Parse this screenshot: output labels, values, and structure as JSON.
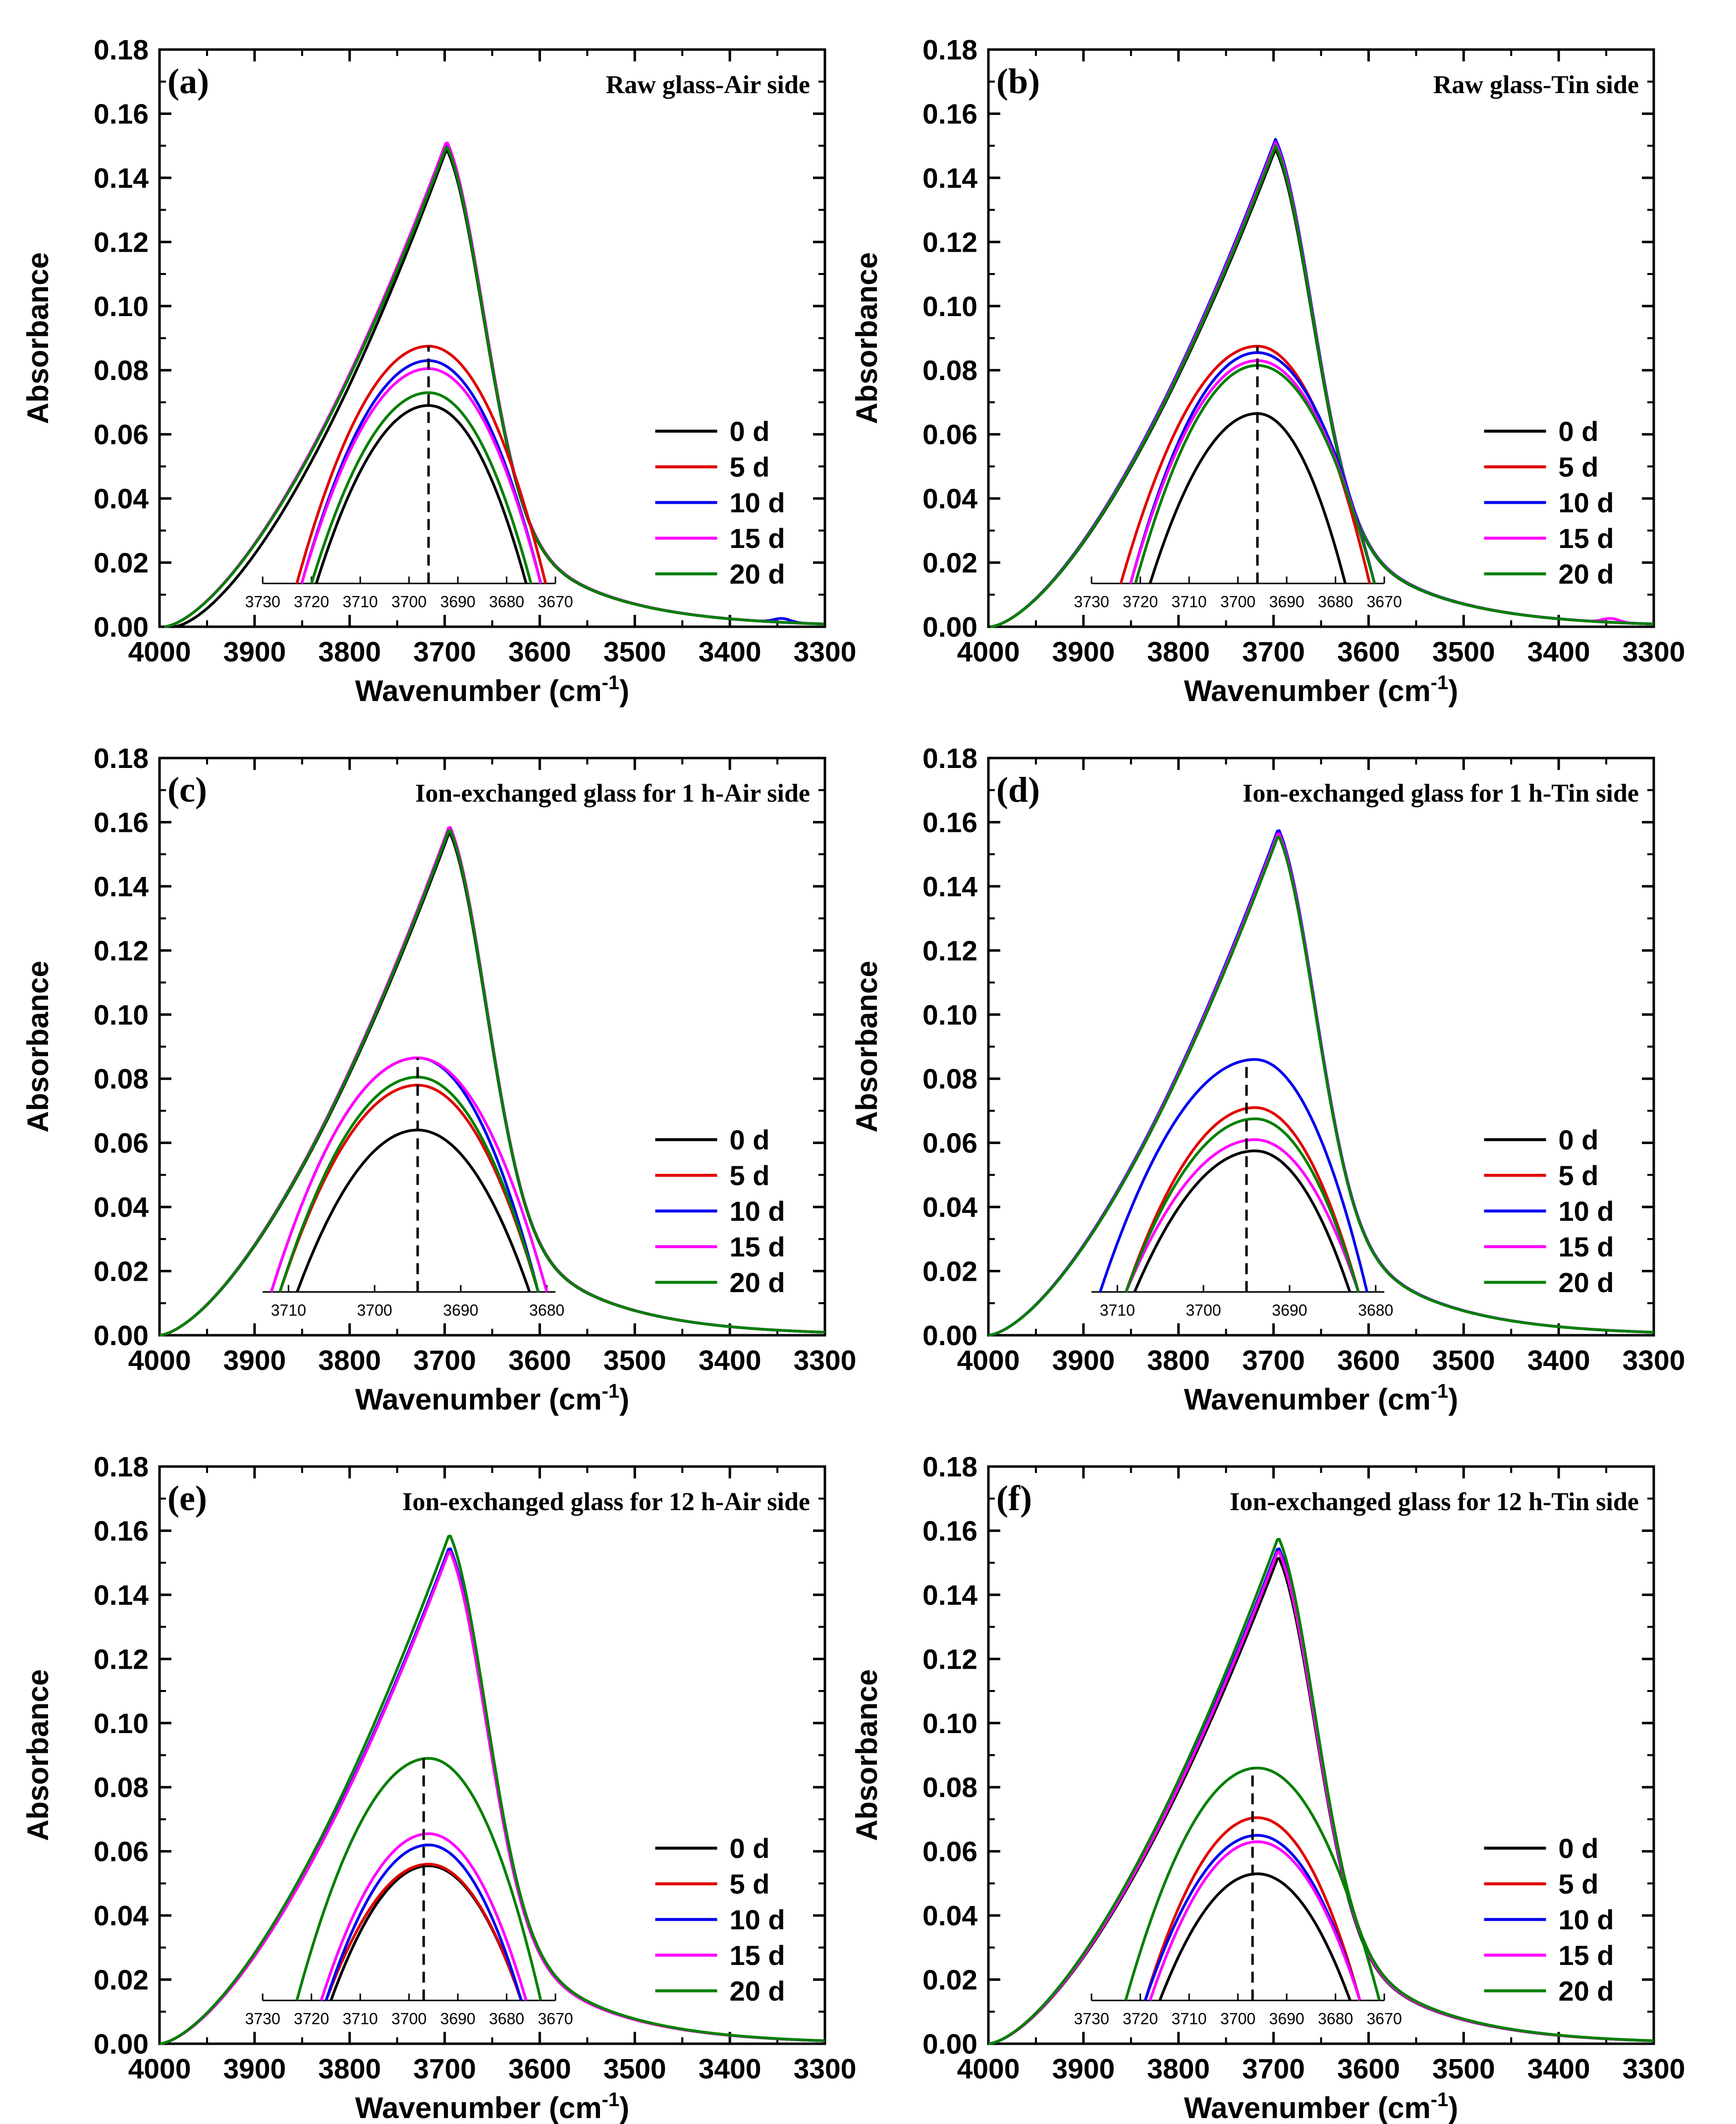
{
  "colors": {
    "0 d": "#000000",
    "5 d": "#e00000",
    "10 d": "#0000ee",
    "15 d": "#ff00ff",
    "20 d": "#008000",
    "axis": "#000000",
    "background": "#ffffff"
  },
  "chart_data": [
    {
      "type": "line",
      "panel": "(a)",
      "title": "Raw glass-Air side",
      "xlabel": "Wavenumber (cm",
      "xlabel_sup": "-1",
      "xlabel_close": ")",
      "ylabel": "Absorbance",
      "xlim": [
        4000,
        3300
      ],
      "ylim": [
        0,
        0.18
      ],
      "x_ticks": [
        "4000",
        "3900",
        "3800",
        "3700",
        "3600",
        "3500",
        "3400",
        "3300"
      ],
      "y_ticks": [
        "0.00",
        "0.02",
        "0.04",
        "0.06",
        "0.08",
        "0.10",
        "0.12",
        "0.14",
        "0.16",
        "0.18"
      ],
      "legend": [
        "0 d",
        "5 d",
        "10 d",
        "15 d",
        "20 d"
      ],
      "legend_position": "right",
      "grid": false,
      "series": [
        {
          "name": "0 d",
          "peak_x": 3698,
          "peak_y": 0.149,
          "start_x": 3985,
          "tail": "none"
        },
        {
          "name": "5 d",
          "peak_x": 3698,
          "peak_y": 0.151,
          "start_x": 3995,
          "tail": "none"
        },
        {
          "name": "10 d",
          "peak_x": 3698,
          "peak_y": 0.151,
          "start_x": 3995,
          "tail": "bump"
        },
        {
          "name": "15 d",
          "peak_x": 3698,
          "peak_y": 0.1515,
          "start_x": 3995,
          "tail": "none"
        },
        {
          "name": "20 d",
          "peak_x": 3698,
          "peak_y": 0.15,
          "start_x": 3995,
          "tail": "none"
        }
      ],
      "inset": {
        "xlim": [
          3730,
          3670
        ],
        "x_ticks": [
          "3730",
          "3720",
          "3710",
          "3700",
          "3690",
          "3680",
          "3670"
        ],
        "dashed_x": 3696,
        "series": [
          {
            "name": "0 d",
            "center": 3696,
            "peak": 0.069,
            "left": 3719,
            "right": 3676
          },
          {
            "name": "5 d",
            "center": 3696,
            "peak": 0.0875,
            "left": 3723,
            "right": 3672
          },
          {
            "name": "10 d",
            "center": 3696,
            "peak": 0.083,
            "left": 3722,
            "right": 3673
          },
          {
            "name": "15 d",
            "center": 3696,
            "peak": 0.0805,
            "left": 3722,
            "right": 3673
          },
          {
            "name": "20 d",
            "center": 3696,
            "peak": 0.073,
            "left": 3720,
            "right": 3675
          }
        ]
      }
    },
    {
      "type": "line",
      "panel": "(b)",
      "title": "Raw glass-Tin side",
      "xlabel": "Wavenumber (cm",
      "xlabel_sup": "-1",
      "xlabel_close": ")",
      "ylabel": "Absorbance",
      "xlim": [
        4000,
        3300
      ],
      "ylim": [
        0,
        0.18
      ],
      "x_ticks": [
        "4000",
        "3900",
        "3800",
        "3700",
        "3600",
        "3500",
        "3400",
        "3300"
      ],
      "y_ticks": [
        "0.00",
        "0.02",
        "0.04",
        "0.06",
        "0.08",
        "0.10",
        "0.12",
        "0.14",
        "0.16",
        "0.18"
      ],
      "legend": [
        "0 d",
        "5 d",
        "10 d",
        "15 d",
        "20 d"
      ],
      "legend_position": "right",
      "grid": false,
      "series": [
        {
          "name": "0 d",
          "peak_x": 3698,
          "peak_y": 0.149,
          "start_x": 3998,
          "tail": "none"
        },
        {
          "name": "5 d",
          "peak_x": 3698,
          "peak_y": 0.151,
          "start_x": 3998,
          "tail": "none"
        },
        {
          "name": "10 d",
          "peak_x": 3698,
          "peak_y": 0.152,
          "start_x": 3998,
          "tail": "none"
        },
        {
          "name": "15 d",
          "peak_x": 3698,
          "peak_y": 0.151,
          "start_x": 3998,
          "tail": "bump"
        },
        {
          "name": "20 d",
          "peak_x": 3698,
          "peak_y": 0.15,
          "start_x": 3998,
          "tail": "none"
        }
      ],
      "inset": {
        "xlim": [
          3730,
          3670
        ],
        "x_ticks": [
          "3730",
          "3720",
          "3710",
          "3700",
          "3690",
          "3680",
          "3670"
        ],
        "dashed_x": 3696,
        "series": [
          {
            "name": "0 d",
            "center": 3696,
            "peak": 0.0665,
            "left": 3718,
            "right": 3678
          },
          {
            "name": "5 d",
            "center": 3696,
            "peak": 0.0875,
            "left": 3724,
            "right": 3673
          },
          {
            "name": "10 d",
            "center": 3696,
            "peak": 0.0855,
            "left": 3722,
            "right": 3672
          },
          {
            "name": "15 d",
            "center": 3696,
            "peak": 0.083,
            "left": 3722,
            "right": 3672
          },
          {
            "name": "20 d",
            "center": 3696,
            "peak": 0.0815,
            "left": 3721,
            "right": 3672
          }
        ]
      }
    },
    {
      "type": "line",
      "panel": "(c)",
      "title": "Ion-exchanged glass for 1 h-Air side",
      "xlabel": "Wavenumber (cm",
      "xlabel_sup": "-1",
      "xlabel_close": ")",
      "ylabel": "Absorbance",
      "xlim": [
        4000,
        3300
      ],
      "ylim": [
        0,
        0.18
      ],
      "x_ticks": [
        "4000",
        "3900",
        "3800",
        "3700",
        "3600",
        "3500",
        "3400",
        "3300"
      ],
      "y_ticks": [
        "0.00",
        "0.02",
        "0.04",
        "0.06",
        "0.08",
        "0.10",
        "0.12",
        "0.14",
        "0.16",
        "0.18"
      ],
      "legend": [
        "0 d",
        "5 d",
        "10 d",
        "15 d",
        "20 d"
      ],
      "legend_position": "right",
      "grid": false,
      "series": [
        {
          "name": "0 d",
          "peak_x": 3695,
          "peak_y": 0.157,
          "start_x": 4000,
          "tail": "none"
        },
        {
          "name": "5 d",
          "peak_x": 3695,
          "peak_y": 0.158,
          "start_x": 4000,
          "tail": "none"
        },
        {
          "name": "10 d",
          "peak_x": 3695,
          "peak_y": 0.158,
          "start_x": 4000,
          "tail": "none"
        },
        {
          "name": "15 d",
          "peak_x": 3695,
          "peak_y": 0.159,
          "start_x": 4000,
          "tail": "none"
        },
        {
          "name": "20 d",
          "peak_x": 3695,
          "peak_y": 0.158,
          "start_x": 4000,
          "tail": "none"
        }
      ],
      "inset": {
        "xlim": [
          3713,
          3679
        ],
        "x_ticks": [
          "3710",
          "3700",
          "3690",
          "3680"
        ],
        "dashed_x": 3695,
        "series": [
          {
            "name": "0 d",
            "center": 3695,
            "peak": 0.064,
            "left": 3709,
            "right": 3682
          },
          {
            "name": "5 d",
            "center": 3695,
            "peak": 0.078,
            "left": 3711,
            "right": 3681
          },
          {
            "name": "10 d",
            "center": 3695,
            "peak": 0.0865,
            "left": 3712,
            "right": 3681
          },
          {
            "name": "15 d",
            "center": 3695,
            "peak": 0.0865,
            "left": 3712,
            "right": 3680
          },
          {
            "name": "20 d",
            "center": 3695,
            "peak": 0.0805,
            "left": 3711,
            "right": 3681
          }
        ]
      }
    },
    {
      "type": "line",
      "panel": "(d)",
      "title": "Ion-exchanged glass for 1 h-Tin side",
      "xlabel": "Wavenumber (cm",
      "xlabel_sup": "-1",
      "xlabel_close": ")",
      "ylabel": "Absorbance",
      "xlim": [
        4000,
        3300
      ],
      "ylim": [
        0,
        0.18
      ],
      "x_ticks": [
        "4000",
        "3900",
        "3800",
        "3700",
        "3600",
        "3500",
        "3400",
        "3300"
      ],
      "y_ticks": [
        "0.00",
        "0.02",
        "0.04",
        "0.06",
        "0.08",
        "0.10",
        "0.12",
        "0.14",
        "0.16",
        "0.18"
      ],
      "legend": [
        "0 d",
        "5 d",
        "10 d",
        "15 d",
        "20 d"
      ],
      "legend_position": "right",
      "grid": false,
      "series": [
        {
          "name": "0 d",
          "peak_x": 3695,
          "peak_y": 0.156,
          "start_x": 4000,
          "tail": "none"
        },
        {
          "name": "5 d",
          "peak_x": 3695,
          "peak_y": 0.157,
          "start_x": 4000,
          "tail": "none"
        },
        {
          "name": "10 d",
          "peak_x": 3695,
          "peak_y": 0.158,
          "start_x": 4000,
          "tail": "none"
        },
        {
          "name": "15 d",
          "peak_x": 3695,
          "peak_y": 0.157,
          "start_x": 4000,
          "tail": "none"
        },
        {
          "name": "20 d",
          "peak_x": 3695,
          "peak_y": 0.156,
          "start_x": 4000,
          "tail": "none"
        }
      ],
      "inset": {
        "xlim": [
          3713,
          3679
        ],
        "x_ticks": [
          "3710",
          "3700",
          "3690",
          "3680"
        ],
        "dashed_x": 3695,
        "series": [
          {
            "name": "0 d",
            "center": 3694,
            "peak": 0.0575,
            "left": 3708,
            "right": 3683
          },
          {
            "name": "5 d",
            "center": 3694,
            "peak": 0.071,
            "left": 3709,
            "right": 3682
          },
          {
            "name": "10 d",
            "center": 3694,
            "peak": 0.086,
            "left": 3712,
            "right": 3681
          },
          {
            "name": "15 d",
            "center": 3694,
            "peak": 0.061,
            "left": 3709,
            "right": 3682
          },
          {
            "name": "20 d",
            "center": 3694,
            "peak": 0.0675,
            "left": 3709,
            "right": 3682
          }
        ]
      }
    },
    {
      "type": "line",
      "panel": "(e)",
      "title": "Ion-exchanged glass for 12 h-Air side",
      "xlabel": "Wavenumber (cm",
      "xlabel_sup": "-1",
      "xlabel_close": ")",
      "ylabel": "Absorbance",
      "xlim": [
        4000,
        3300
      ],
      "ylim": [
        0,
        0.18
      ],
      "x_ticks": [
        "4000",
        "3900",
        "3800",
        "3700",
        "3600",
        "3500",
        "3400",
        "3300"
      ],
      "y_ticks": [
        "0.00",
        "0.02",
        "0.04",
        "0.06",
        "0.08",
        "0.10",
        "0.12",
        "0.14",
        "0.16",
        "0.18"
      ],
      "legend": [
        "0 d",
        "5 d",
        "10 d",
        "15 d",
        "20 d"
      ],
      "legend_position": "right",
      "grid": false,
      "series": [
        {
          "name": "0 d",
          "peak_x": 3695,
          "peak_y": 0.154,
          "start_x": 4000,
          "tail": "none"
        },
        {
          "name": "5 d",
          "peak_x": 3695,
          "peak_y": 0.154,
          "start_x": 4000,
          "tail": "none"
        },
        {
          "name": "10 d",
          "peak_x": 3695,
          "peak_y": 0.155,
          "start_x": 4000,
          "tail": "none"
        },
        {
          "name": "15 d",
          "peak_x": 3695,
          "peak_y": 0.154,
          "start_x": 4000,
          "tail": "none"
        },
        {
          "name": "20 d",
          "peak_x": 3695,
          "peak_y": 0.159,
          "start_x": 4000,
          "tail": "none"
        }
      ],
      "inset": {
        "xlim": [
          3730,
          3670
        ],
        "x_ticks": [
          "3730",
          "3720",
          "3710",
          "3700",
          "3690",
          "3680",
          "3670"
        ],
        "dashed_x": 3697,
        "series": [
          {
            "name": "0 d",
            "center": 3696,
            "peak": 0.0555,
            "left": 3716,
            "right": 3677
          },
          {
            "name": "5 d",
            "center": 3696,
            "peak": 0.056,
            "left": 3717,
            "right": 3677
          },
          {
            "name": "10 d",
            "center": 3696,
            "peak": 0.062,
            "left": 3717,
            "right": 3677
          },
          {
            "name": "15 d",
            "center": 3696,
            "peak": 0.0655,
            "left": 3718,
            "right": 3676
          },
          {
            "name": "20 d",
            "center": 3696,
            "peak": 0.089,
            "left": 3723,
            "right": 3673
          }
        ]
      }
    },
    {
      "type": "line",
      "panel": "(f)",
      "title": "Ion-exchanged glass for 12 h-Tin side",
      "xlabel": "Wavenumber (cm",
      "xlabel_sup": "-1",
      "xlabel_close": ")",
      "ylabel": "Absorbance",
      "xlim": [
        4000,
        3300
      ],
      "ylim": [
        0,
        0.18
      ],
      "x_ticks": [
        "4000",
        "3900",
        "3800",
        "3700",
        "3600",
        "3500",
        "3400",
        "3300"
      ],
      "y_ticks": [
        "0.00",
        "0.02",
        "0.04",
        "0.06",
        "0.08",
        "0.10",
        "0.12",
        "0.14",
        "0.16",
        "0.18"
      ],
      "legend": [
        "0 d",
        "5 d",
        "10 d",
        "15 d",
        "20 d"
      ],
      "legend_position": "right",
      "grid": false,
      "series": [
        {
          "name": "0 d",
          "peak_x": 3695,
          "peak_y": 0.152,
          "start_x": 4000,
          "tail": "none"
        },
        {
          "name": "5 d",
          "peak_x": 3695,
          "peak_y": 0.154,
          "start_x": 4000,
          "tail": "none"
        },
        {
          "name": "10 d",
          "peak_x": 3695,
          "peak_y": 0.155,
          "start_x": 4000,
          "tail": "none"
        },
        {
          "name": "15 d",
          "peak_x": 3695,
          "peak_y": 0.154,
          "start_x": 4000,
          "tail": "none"
        },
        {
          "name": "20 d",
          "peak_x": 3695,
          "peak_y": 0.158,
          "start_x": 4000,
          "tail": "none"
        }
      ],
      "inset": {
        "xlim": [
          3730,
          3670
        ],
        "x_ticks": [
          "3730",
          "3720",
          "3710",
          "3700",
          "3690",
          "3680",
          "3670"
        ],
        "dashed_x": 3697,
        "series": [
          {
            "name": "0 d",
            "center": 3696,
            "peak": 0.053,
            "left": 3716,
            "right": 3677
          },
          {
            "name": "5 d",
            "center": 3696,
            "peak": 0.0705,
            "left": 3719,
            "right": 3675
          },
          {
            "name": "10 d",
            "center": 3696,
            "peak": 0.065,
            "left": 3719,
            "right": 3675
          },
          {
            "name": "15 d",
            "center": 3696,
            "peak": 0.063,
            "left": 3718,
            "right": 3675
          },
          {
            "name": "20 d",
            "center": 3696,
            "peak": 0.086,
            "left": 3723,
            "right": 3671
          }
        ]
      }
    }
  ]
}
